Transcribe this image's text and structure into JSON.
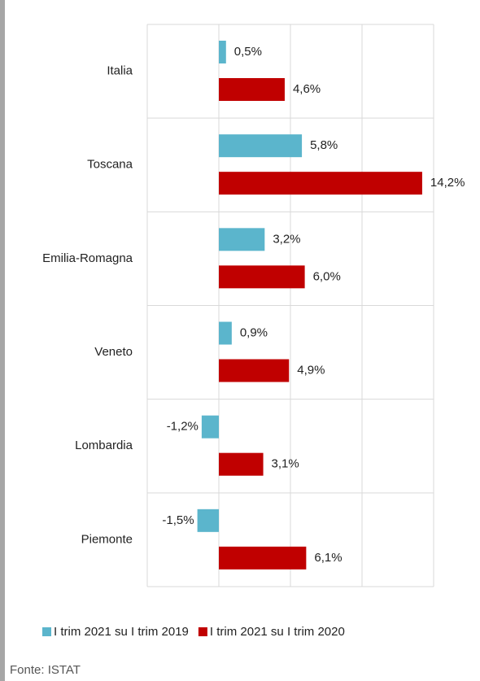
{
  "chart_data": {
    "type": "barh",
    "categories": [
      "Italia",
      "Toscana",
      "Emilia-Romagna",
      "Veneto",
      "Lombardia",
      "Piemonte"
    ],
    "series": [
      {
        "name": "I trim 2021 su I trim 2019",
        "color": "#5bb5cc",
        "values": [
          0.5,
          5.8,
          3.2,
          0.9,
          -1.2,
          -1.5
        ],
        "value_labels": [
          "0,5%",
          "5,8%",
          "3,2%",
          "0,9%",
          "-1,2%",
          "-1,5%"
        ]
      },
      {
        "name": "I trim 2021 su I trim 2020",
        "color": "#c00000",
        "values": [
          4.6,
          14.2,
          6.0,
          4.9,
          3.1,
          6.1
        ],
        "value_labels": [
          "4,6%",
          "14,2%",
          "6,0%",
          "4,9%",
          "3,1%",
          "6,1%"
        ]
      }
    ],
    "xlim": [
      -5,
      15
    ],
    "xticks": [
      -5,
      0,
      5,
      10,
      15
    ],
    "grid": true,
    "source": "Fonte: ISTAT"
  }
}
